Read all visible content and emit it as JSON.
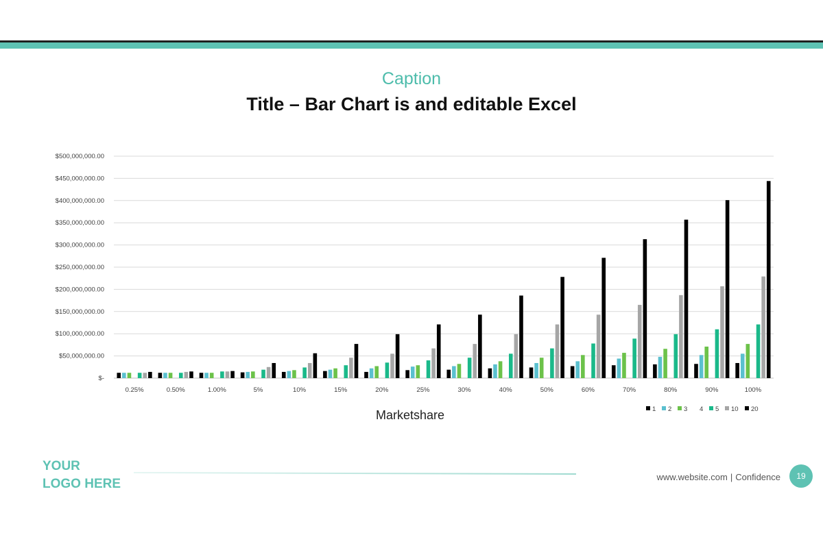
{
  "slide": {
    "caption": "Caption",
    "title": "Title – Bar Chart is and editable Excel",
    "logo_line1": "YOUR",
    "logo_line2": "LOGO HERE",
    "footer_website": "www.website.com",
    "footer_separator": "|",
    "footer_confidence": "Confidence",
    "page_number": "19"
  },
  "colors": {
    "accent": "#5ec2b3",
    "caption": "#4dbcab"
  },
  "chart_data": {
    "type": "bar",
    "xlabel": "Marketshare",
    "ylabel": "",
    "ylim": [
      0,
      500000000
    ],
    "y_ticks": [
      0,
      50000000,
      100000000,
      150000000,
      200000000,
      250000000,
      300000000,
      350000000,
      400000000,
      450000000,
      500000000
    ],
    "y_tick_labels": [
      "$-",
      "$50,000,000.00",
      "$100,000,000.00",
      "$150,000,000.00",
      "$200,000,000.00",
      "$250,000,000.00",
      "$300,000,000.00",
      "$350,000,000.00",
      "$400,000,000.00",
      "$450,000,000.00",
      "$500,000,000.00"
    ],
    "grid": true,
    "legend_position": "bottom-right",
    "categories": [
      "0.25%",
      "0.50%",
      "1.00%",
      "5%",
      "10%",
      "15%",
      "20%",
      "25%",
      "30%",
      "40%",
      "50%",
      "60%",
      "70%",
      "80%",
      "90%",
      "100%"
    ],
    "series": [
      {
        "name": "1",
        "color": "#000000",
        "values": [
          12000000,
          12000000,
          12000000,
          13000000,
          14000000,
          16000000,
          14000000,
          18000000,
          19000000,
          22000000,
          24000000,
          27000000,
          29000000,
          31000000,
          32000000,
          34000000
        ]
      },
      {
        "name": "2",
        "color": "#5bc0cf",
        "values": [
          12000000,
          12000000,
          12000000,
          14000000,
          16000000,
          19000000,
          22000000,
          26000000,
          27000000,
          31000000,
          34000000,
          38000000,
          44000000,
          48000000,
          52000000,
          55000000
        ]
      },
      {
        "name": "3",
        "color": "#6cc24a",
        "values": [
          12000000,
          12000000,
          12000000,
          15000000,
          18000000,
          22000000,
          27000000,
          29000000,
          32000000,
          38000000,
          46000000,
          52000000,
          57000000,
          66000000,
          71000000,
          77000000
        ]
      },
      {
        "name": "4",
        "color": "#ffffff",
        "values": [
          0,
          0,
          0,
          0,
          0,
          0,
          0,
          0,
          0,
          0,
          0,
          0,
          0,
          0,
          0,
          0
        ]
      },
      {
        "name": "5",
        "color": "#1bb98a",
        "values": [
          12000000,
          12000000,
          15000000,
          19000000,
          24000000,
          29000000,
          35000000,
          40000000,
          46000000,
          55000000,
          67000000,
          78000000,
          89000000,
          99000000,
          110000000,
          121000000
        ]
      },
      {
        "name": "10",
        "color": "#a6a6a6",
        "values": [
          12000000,
          14000000,
          15000000,
          25000000,
          34000000,
          46000000,
          55000000,
          67000000,
          77000000,
          99000000,
          121000000,
          143000000,
          165000000,
          187000000,
          207000000,
          229000000
        ]
      },
      {
        "name": "20",
        "color": "#000000",
        "values": [
          14000000,
          15000000,
          16000000,
          34000000,
          56000000,
          77000000,
          99000000,
          121000000,
          143000000,
          186000000,
          228000000,
          271000000,
          313000000,
          357000000,
          401000000,
          444000000
        ]
      }
    ]
  }
}
